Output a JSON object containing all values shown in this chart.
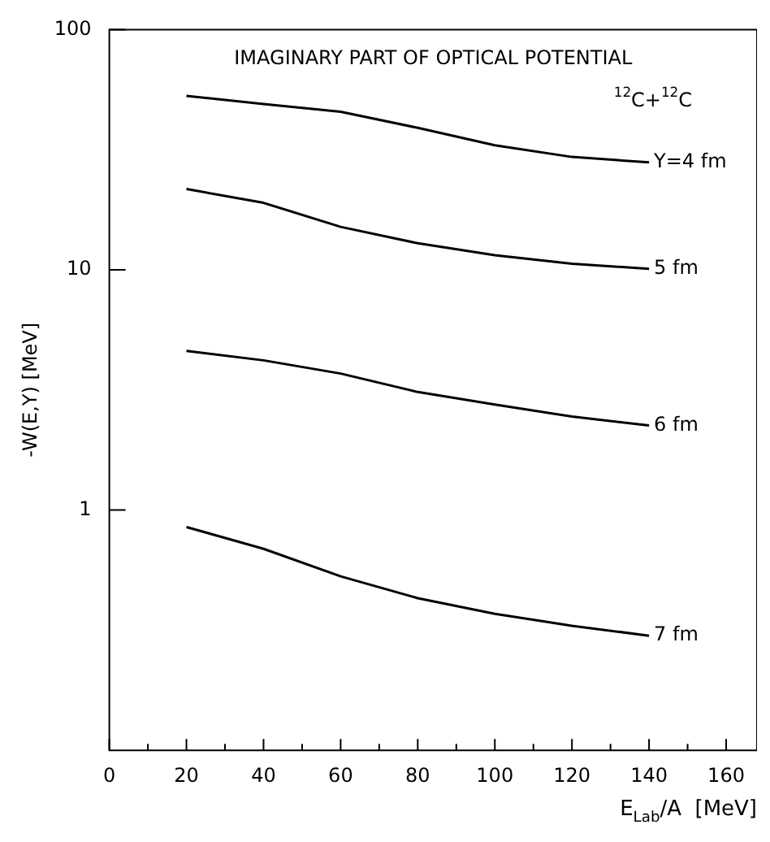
{
  "chart_data": {
    "type": "line",
    "title": "IMAGINARY PART OF OPTICAL POTENTIAL",
    "xlabel": "E$_{Lab}$/A  [MeV]",
    "ylabel": "-W(E,Y) [MeV]",
    "annotations": [
      "$^{12}$C+$^{12}$C"
    ],
    "x": [
      20,
      40,
      60,
      80,
      100,
      120,
      140
    ],
    "series": [
      {
        "name": "Y=4 fm",
        "color": "#000000",
        "values": [
          53,
          49,
          45.5,
          39,
          33,
          29.5,
          28
        ]
      },
      {
        "name": "5 fm",
        "color": "#000000",
        "values": [
          21.7,
          19,
          15.1,
          12.9,
          11.5,
          10.6,
          10.1
        ]
      },
      {
        "name": "6 fm",
        "color": "#000000",
        "values": [
          4.6,
          4.2,
          3.7,
          3.1,
          2.75,
          2.45,
          2.25
        ]
      },
      {
        "name": "7 fm",
        "color": "#000000",
        "values": [
          0.85,
          0.69,
          0.53,
          0.43,
          0.37,
          0.33,
          0.3
        ]
      }
    ],
    "log": "y",
    "xlim": [
      0,
      168
    ],
    "ylim": [
      0.1,
      100
    ],
    "xticks": [
      0,
      {
        "value": 10,
        "label": null
      },
      20,
      {
        "value": 30,
        "label": null
      },
      40,
      {
        "value": 50,
        "label": null
      },
      60,
      {
        "value": 70,
        "label": null
      },
      80,
      {
        "value": 90,
        "label": null
      },
      100,
      {
        "value": 110,
        "label": null
      },
      120,
      {
        "value": 130,
        "label": null
      },
      140,
      {
        "value": 150,
        "label": null
      },
      160
    ],
    "yticks": [
      1,
      10,
      100
    ],
    "grid": false,
    "legend": false,
    "marker": "none",
    "line_style": "solid"
  }
}
